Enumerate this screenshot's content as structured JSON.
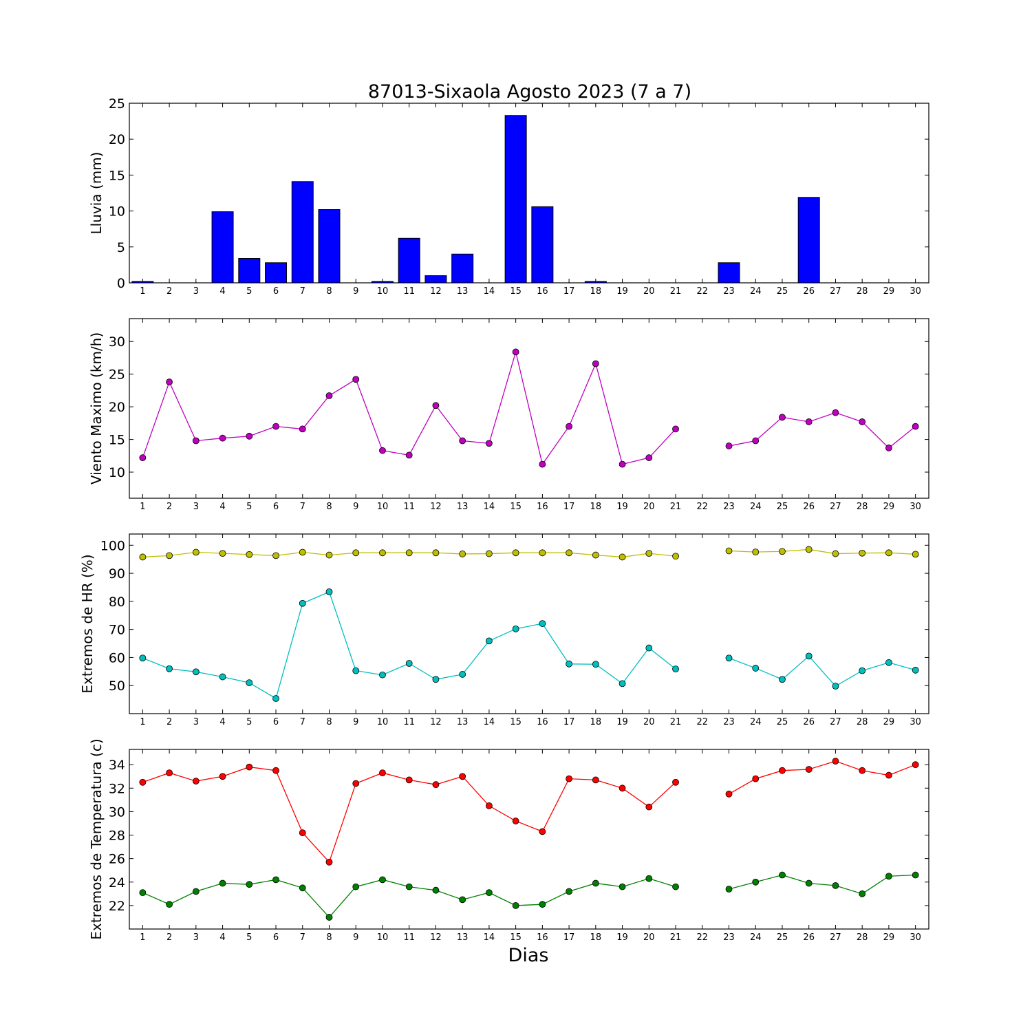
{
  "title": "87013-Sixaola Agosto 2023  (7 a 7)",
  "xlabel": "Dias",
  "chart_data": [
    {
      "type": "bar",
      "ylabel": "Lluvia (mm)",
      "ylim": [
        0,
        25
      ],
      "yticks": [
        0,
        5,
        10,
        15,
        20,
        25
      ],
      "categories": [
        1,
        2,
        3,
        4,
        5,
        6,
        7,
        8,
        9,
        10,
        11,
        12,
        13,
        14,
        15,
        16,
        17,
        18,
        19,
        20,
        21,
        22,
        23,
        24,
        25,
        26,
        27,
        28,
        29,
        30
      ],
      "series": [
        {
          "color": "#0000ff",
          "values": [
            0.2,
            0,
            0,
            9.9,
            3.4,
            2.8,
            14.1,
            10.2,
            0,
            0.2,
            6.2,
            1.0,
            4.0,
            0,
            23.3,
            10.6,
            0,
            0.2,
            0,
            0,
            0,
            0,
            2.8,
            0,
            0,
            11.9,
            0,
            0,
            0,
            0
          ]
        }
      ]
    },
    {
      "type": "line",
      "ylabel": "Viento Maximo (km/h)",
      "ylim": [
        6,
        33.5
      ],
      "yticks": [
        10,
        15,
        20,
        25,
        30
      ],
      "x": [
        1,
        2,
        3,
        4,
        5,
        6,
        7,
        8,
        9,
        10,
        11,
        12,
        13,
        14,
        15,
        16,
        17,
        18,
        19,
        20,
        21,
        22,
        23,
        24,
        25,
        26,
        27,
        28,
        29,
        30
      ],
      "series": [
        {
          "color": "#bf00bf",
          "values": [
            12.2,
            23.8,
            14.8,
            15.2,
            15.5,
            17.0,
            16.6,
            21.7,
            24.2,
            13.3,
            12.6,
            20.2,
            14.8,
            14.4,
            28.4,
            11.2,
            17.0,
            26.6,
            11.2,
            12.2,
            16.6,
            null,
            14.0,
            14.8,
            18.4,
            17.7,
            19.1,
            17.7,
            13.7,
            17.0
          ]
        }
      ]
    },
    {
      "type": "line",
      "ylabel": "Extremos de HR (%)",
      "ylim": [
        40,
        104
      ],
      "yticks": [
        50,
        60,
        70,
        80,
        90,
        100
      ],
      "x": [
        1,
        2,
        3,
        4,
        5,
        6,
        7,
        8,
        9,
        10,
        11,
        12,
        13,
        14,
        15,
        16,
        17,
        18,
        19,
        20,
        21,
        22,
        23,
        24,
        25,
        26,
        27,
        28,
        29,
        30
      ],
      "series": [
        {
          "color": "#bfbf00",
          "values": [
            95.8,
            96.3,
            97.5,
            97.1,
            96.7,
            96.3,
            97.5,
            96.5,
            97.3,
            97.3,
            97.3,
            97.3,
            96.9,
            97.0,
            97.3,
            97.3,
            97.3,
            96.5,
            95.8,
            97.1,
            96.1,
            null,
            98.0,
            97.6,
            97.8,
            98.5,
            97.0,
            97.2,
            97.3,
            96.8
          ]
        },
        {
          "color": "#00bfbf",
          "values": [
            59.8,
            56.0,
            54.9,
            53.1,
            51.0,
            45.4,
            79.3,
            83.4,
            55.3,
            53.8,
            57.9,
            52.2,
            54.0,
            65.9,
            70.2,
            72.1,
            57.7,
            57.6,
            50.7,
            63.4,
            55.9,
            null,
            59.8,
            56.2,
            52.2,
            60.5,
            49.8,
            55.3,
            58.2,
            55.5
          ]
        }
      ]
    },
    {
      "type": "line",
      "ylabel": "Extremos de Temperatura (c)",
      "ylim": [
        20,
        35.3
      ],
      "yticks": [
        22,
        24,
        26,
        28,
        30,
        32,
        34
      ],
      "x": [
        1,
        2,
        3,
        4,
        5,
        6,
        7,
        8,
        9,
        10,
        11,
        12,
        13,
        14,
        15,
        16,
        17,
        18,
        19,
        20,
        21,
        22,
        23,
        24,
        25,
        26,
        27,
        28,
        29,
        30
      ],
      "series": [
        {
          "color": "#ff0000",
          "values": [
            32.5,
            33.3,
            32.6,
            33.0,
            33.8,
            33.5,
            28.2,
            25.7,
            32.4,
            33.3,
            32.7,
            32.3,
            33.0,
            30.5,
            29.2,
            28.3,
            32.8,
            32.7,
            32.0,
            30.4,
            32.5,
            null,
            31.5,
            32.8,
            33.5,
            33.6,
            34.3,
            33.5,
            33.1,
            34.0
          ]
        },
        {
          "color": "#008000",
          "values": [
            23.1,
            22.1,
            23.2,
            23.9,
            23.8,
            24.2,
            23.5,
            21.0,
            23.6,
            24.2,
            23.6,
            23.3,
            22.5,
            23.1,
            22.0,
            22.1,
            23.2,
            23.9,
            23.6,
            24.3,
            23.6,
            null,
            23.4,
            24.0,
            24.6,
            23.9,
            23.7,
            23.0,
            24.5,
            24.6
          ]
        }
      ]
    }
  ]
}
